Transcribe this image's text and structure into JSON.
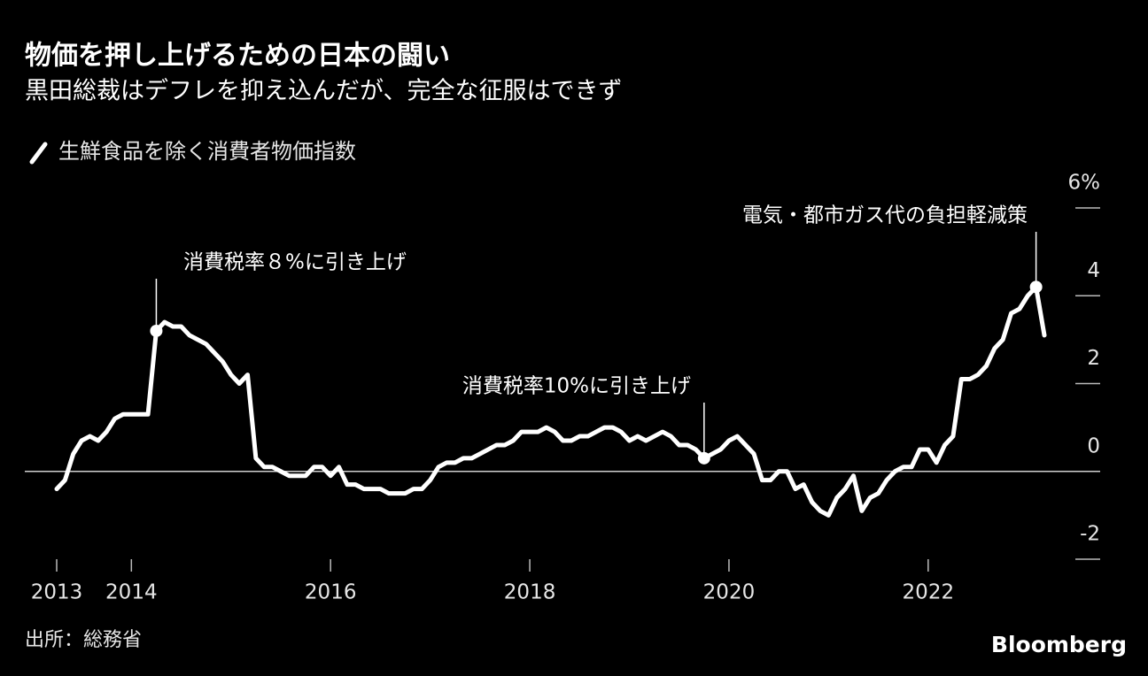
{
  "chart_data": {
    "type": "line",
    "title": "物価を押し上げるための日本の闘い",
    "subtitle": "黒田総裁はデフレを抑え込んだが、完全な征服はできず",
    "source": "出所：総務省",
    "brand": "Bloomberg",
    "categories": [
      "2013",
      null,
      null,
      null,
      null,
      null,
      null,
      null,
      null,
      "2014",
      null,
      null,
      null,
      null,
      null,
      null,
      null,
      null,
      null,
      null,
      null,
      null,
      null,
      null,
      null,
      null,
      null,
      null,
      null,
      null,
      null,
      null,
      null,
      "2016",
      null,
      null,
      null,
      null,
      null,
      null,
      null,
      null,
      null,
      null,
      null,
      null,
      null,
      null,
      null,
      null,
      null,
      null,
      null,
      null,
      null,
      null,
      null,
      "2018",
      null,
      null,
      null,
      null,
      null,
      null,
      null,
      null,
      null,
      null,
      null,
      null,
      null,
      null,
      null,
      null,
      null,
      null,
      null,
      null,
      null,
      null,
      null,
      "2020",
      null,
      null,
      null,
      null,
      null,
      null,
      null,
      null,
      null,
      null,
      null,
      null,
      null,
      null,
      null,
      null,
      null,
      null,
      null,
      null,
      null,
      null,
      null,
      "2022",
      null,
      null,
      null,
      null,
      null,
      null,
      null,
      null,
      null,
      null,
      null,
      null,
      null,
      null
    ],
    "series": [
      {
        "name": "生鮮食品を除く消費者物価指数",
        "color": "#ffffff",
        "values": [
          -0.4,
          -0.2,
          0.4,
          0.7,
          0.8,
          0.7,
          0.9,
          1.2,
          1.3,
          1.3,
          1.3,
          1.3,
          3.2,
          3.4,
          3.3,
          3.3,
          3.1,
          3.0,
          2.9,
          2.7,
          2.5,
          2.2,
          2.0,
          2.2,
          0.3,
          0.1,
          0.1,
          0.0,
          -0.1,
          -0.1,
          -0.1,
          0.1,
          0.1,
          -0.1,
          0.1,
          -0.3,
          -0.3,
          -0.4,
          -0.4,
          -0.4,
          -0.5,
          -0.5,
          -0.5,
          -0.4,
          -0.4,
          -0.2,
          0.1,
          0.2,
          0.2,
          0.3,
          0.3,
          0.4,
          0.5,
          0.6,
          0.6,
          0.7,
          0.9,
          0.9,
          0.9,
          1.0,
          0.9,
          0.7,
          0.7,
          0.8,
          0.8,
          0.9,
          1.0,
          1.0,
          0.9,
          0.7,
          0.8,
          0.7,
          0.8,
          0.9,
          0.8,
          0.6,
          0.6,
          0.5,
          0.3,
          0.4,
          0.5,
          0.7,
          0.8,
          0.6,
          0.4,
          -0.2,
          -0.2,
          0.0,
          0.0,
          -0.4,
          -0.3,
          -0.7,
          -0.9,
          -1.0,
          -0.6,
          -0.4,
          -0.1,
          -0.9,
          -0.6,
          -0.5,
          -0.2,
          0.0,
          0.1,
          0.1,
          0.5,
          0.5,
          0.2,
          0.6,
          0.8,
          2.1,
          2.1,
          2.2,
          2.4,
          2.8,
          3.0,
          3.6,
          3.7,
          4.0,
          4.2,
          3.1
        ]
      }
    ],
    "ylim": [
      -2,
      6
    ],
    "yticks": [
      {
        "value": 6,
        "label": "6%"
      },
      4,
      2,
      0,
      -2
    ],
    "annotations": [
      "消費税率８%に引き上げ",
      "消費税率10%に引き上げ",
      "電気・都市ガス代の負担軽減策"
    ]
  }
}
